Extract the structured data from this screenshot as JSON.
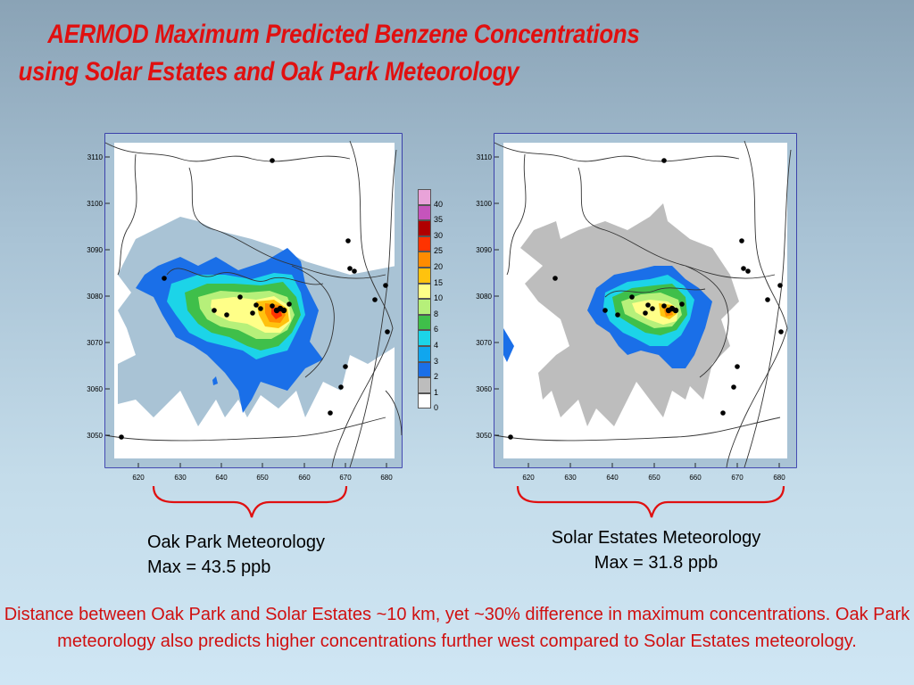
{
  "title": {
    "line1": "AERMOD Maximum Predicted Benzene Concentrations",
    "line2": "using Solar Estates and Oak Park Meteorology"
  },
  "axes": {
    "x_ticks": [
      "620",
      "630",
      "640",
      "650",
      "660",
      "670",
      "680"
    ],
    "y_ticks": [
      "3110",
      "3100",
      "3090",
      "3080",
      "3070",
      "3060",
      "3050"
    ]
  },
  "legend": {
    "levels": [
      {
        "label": "40",
        "color": "#e9a3d9"
      },
      {
        "label": "35",
        "color": "#c554bc"
      },
      {
        "label": "30",
        "color": "#b00000"
      },
      {
        "label": "25",
        "color": "#ff3300"
      },
      {
        "label": "20",
        "color": "#ff8c00"
      },
      {
        "label": "15",
        "color": "#ffc20e"
      },
      {
        "label": "10",
        "color": "#ffff88"
      },
      {
        "label": "8",
        "color": "#b6f07a"
      },
      {
        "label": "6",
        "color": "#3fbf4a"
      },
      {
        "label": "4",
        "color": "#1cd4e8"
      },
      {
        "label": "3",
        "color": "#10a6ee"
      },
      {
        "label": "2",
        "color": "#1a6fe8"
      },
      {
        "label": "1",
        "color": "#bdbdbd"
      },
      {
        "label": "0",
        "color": "#ffffff"
      }
    ]
  },
  "maps": [
    {
      "id": "oak-park",
      "caption_line1": "Oak Park Meteorology",
      "caption_line2": "Max = 43.5 ppb"
    },
    {
      "id": "solar-estates",
      "caption_line1": "Solar Estates Meteorology",
      "caption_line2": "Max = 31.8 ppb"
    }
  ],
  "note": "Distance between Oak Park and Solar Estates ~10 km, yet ~30% difference in maximum concentrations.  Oak Park meteorology also predicts higher concentrations further west compared to Solar Estates meteorology.",
  "colors": {
    "title": "#e01010",
    "note": "#d01010",
    "bracket": "#e01010",
    "frame": "#1a1aa0"
  }
}
